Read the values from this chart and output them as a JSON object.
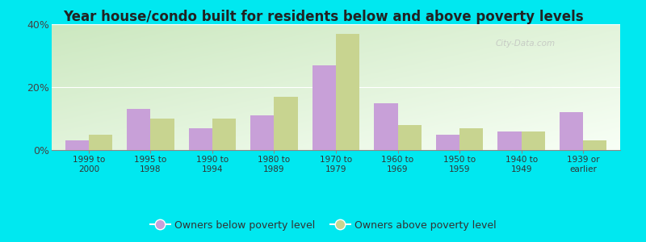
{
  "title": "Year house/condo built for residents below and above poverty levels",
  "categories": [
    "1999 to\n2000",
    "1995 to\n1998",
    "1990 to\n1994",
    "1980 to\n1989",
    "1970 to\n1979",
    "1960 to\n1969",
    "1950 to\n1959",
    "1940 to\n1949",
    "1939 or\nearlier"
  ],
  "below_poverty": [
    3.0,
    13.0,
    7.0,
    11.0,
    27.0,
    15.0,
    5.0,
    6.0,
    12.0
  ],
  "above_poverty": [
    5.0,
    10.0,
    10.0,
    17.0,
    37.0,
    8.0,
    7.0,
    6.0,
    3.0
  ],
  "below_color": "#c8a0d8",
  "above_color": "#c8d490",
  "ylim": [
    0,
    40
  ],
  "yticks": [
    0,
    20,
    40
  ],
  "ytick_labels": [
    "0%",
    "20%",
    "40%"
  ],
  "outer_background": "#00e8f0",
  "title_fontsize": 12,
  "legend_below_label": "Owners below poverty level",
  "legend_above_label": "Owners above poverty level",
  "bar_width": 0.38,
  "watermark": "City-Data.com",
  "bg_color_topleft": "#d8eed0",
  "bg_color_topright": "#f0fff0",
  "bg_color_bottomleft": "#e8f8e0",
  "bg_color_bottomright": "#fafff8"
}
